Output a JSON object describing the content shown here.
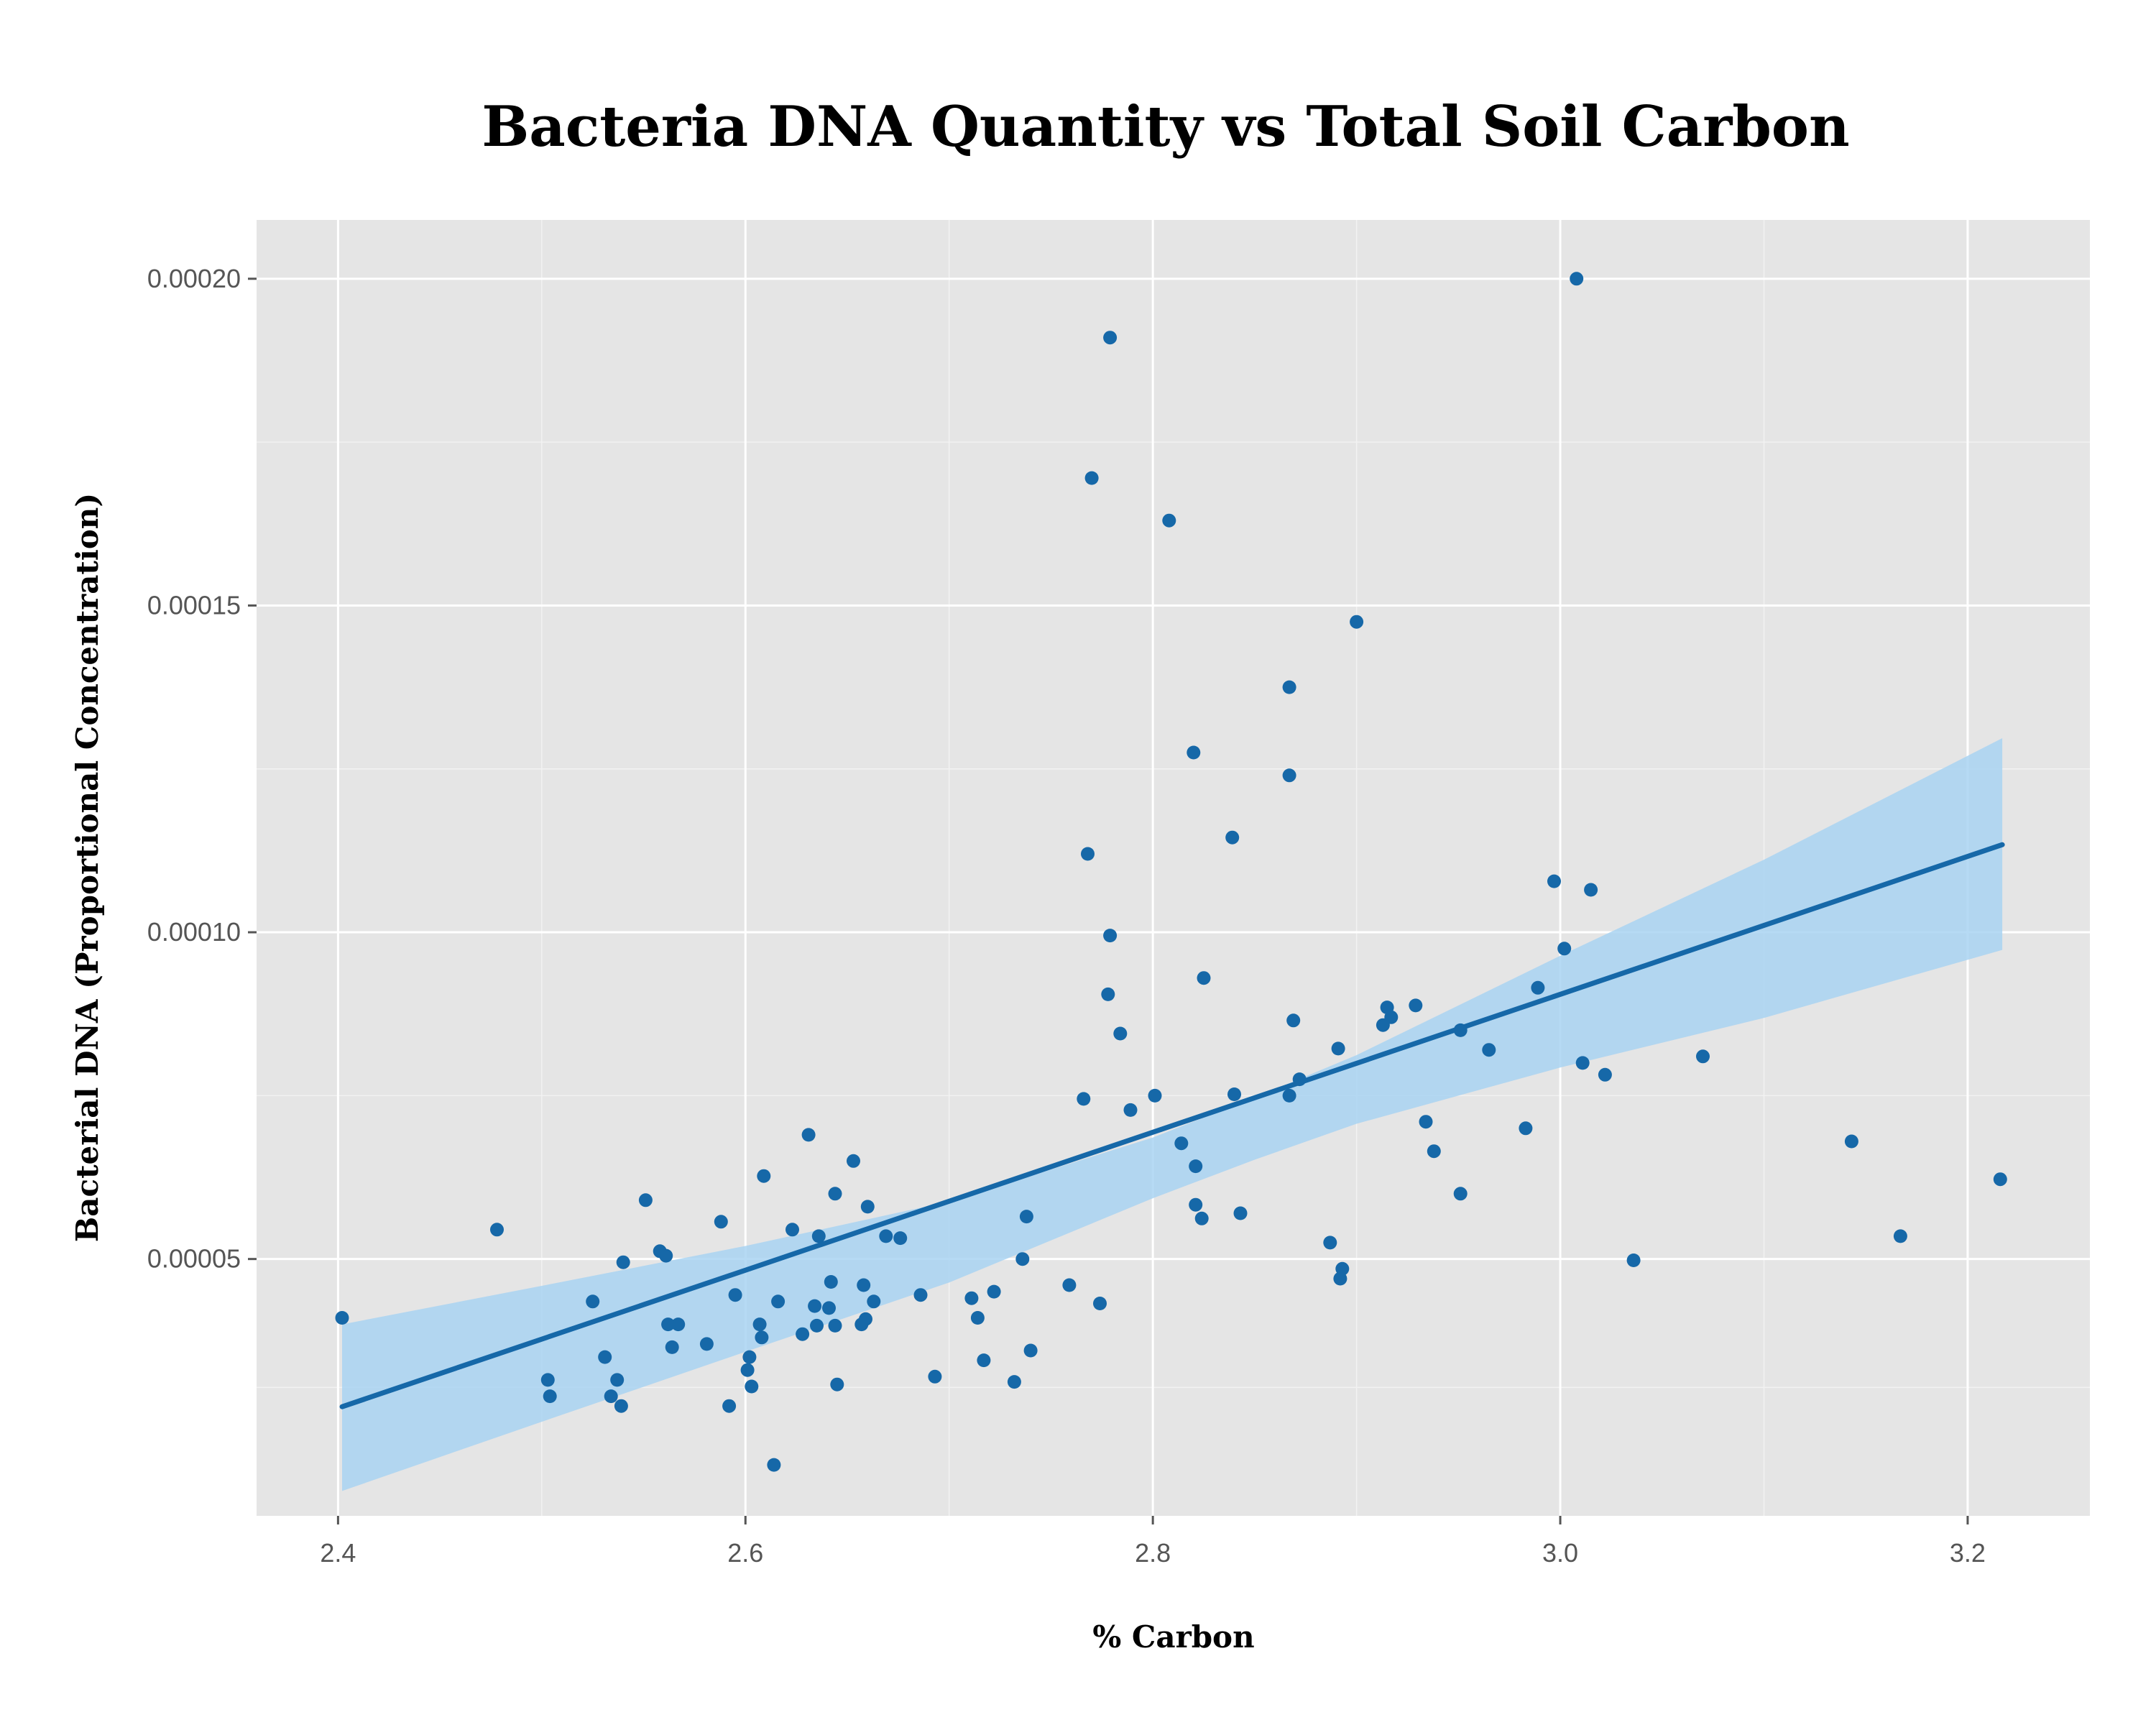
{
  "chart_data": {
    "type": "scatter",
    "title": "Bacteria DNA Quantity vs Total Soil Carbon",
    "xlabel": "% Carbon",
    "ylabel": "Bacterial DNA (Proportional Concentration)",
    "xlim": [
      2.36,
      3.26
    ],
    "ylim": [
      1.07e-05,
      0.000209
    ],
    "x_ticks": [
      2.4,
      2.6,
      2.8,
      3.0,
      3.2
    ],
    "x_tick_labels": [
      "2.4",
      "2.6",
      "2.8",
      "3.0",
      "3.2"
    ],
    "y_ticks": [
      5e-05,
      0.0001,
      0.00015,
      0.0002
    ],
    "y_tick_labels": [
      "0.00005",
      "0.00010",
      "0.00015",
      "0.00020"
    ],
    "grid": true,
    "background_color": "#e5e5e5",
    "point_color": "#1668a8",
    "line_color": "#1668a8",
    "band_color": "#a9d3f2",
    "regression_line": {
      "x": [
        2.402,
        3.217
      ],
      "y": [
        2.74e-05,
        0.0001134
      ]
    },
    "confidence_band": {
      "x": [
        2.402,
        2.5,
        2.6,
        2.7,
        2.8,
        2.85,
        2.9,
        3.0,
        3.1,
        3.217
      ],
      "lower": [
        1.45e-05,
        2.51e-05,
        3.58e-05,
        4.64e-05,
        5.93e-05,
        6.52e-05,
        7.07e-05,
        7.93e-05,
        8.69e-05,
        9.73e-05
      ],
      "upper": [
        4e-05,
        4.59e-05,
        5.2e-05,
        5.88e-05,
        6.86e-05,
        7.47e-05,
        8.12e-05,
        9.64e-05,
        0.0001111,
        0.0001297
      ]
    },
    "series": [
      {
        "points": [
          [
            2.402,
            4.1e-05
          ],
          [
            2.478,
            5.45e-05
          ],
          [
            2.503,
            3.15e-05
          ],
          [
            2.504,
            2.9e-05
          ],
          [
            2.525,
            4.35e-05
          ],
          [
            2.531,
            3.5e-05
          ],
          [
            2.534,
            2.9e-05
          ],
          [
            2.537,
            3.15e-05
          ],
          [
            2.539,
            2.75e-05
          ],
          [
            2.54,
            4.95e-05
          ],
          [
            2.551,
            5.9e-05
          ],
          [
            2.558,
            5.12e-05
          ],
          [
            2.561,
            5.05e-05
          ],
          [
            2.562,
            4e-05
          ],
          [
            2.564,
            3.65e-05
          ],
          [
            2.567,
            4e-05
          ],
          [
            2.581,
            3.7e-05
          ],
          [
            2.588,
            5.57e-05
          ],
          [
            2.592,
            2.75e-05
          ],
          [
            2.595,
            4.45e-05
          ],
          [
            2.601,
            3.3e-05
          ],
          [
            2.602,
            3.5e-05
          ],
          [
            2.603,
            3.05e-05
          ],
          [
            2.607,
            4e-05
          ],
          [
            2.608,
            3.8e-05
          ],
          [
            2.609,
            6.27e-05
          ],
          [
            2.614,
            1.85e-05
          ],
          [
            2.616,
            4.35e-05
          ],
          [
            2.623,
            5.45e-05
          ],
          [
            2.628,
            3.85e-05
          ],
          [
            2.631,
            6.9e-05
          ],
          [
            2.634,
            4.28e-05
          ],
          [
            2.635,
            3.98e-05
          ],
          [
            2.636,
            5.35e-05
          ],
          [
            2.641,
            4.25e-05
          ],
          [
            2.642,
            4.65e-05
          ],
          [
            2.644,
            3.98e-05
          ],
          [
            2.644,
            6e-05
          ],
          [
            2.645,
            3.08e-05
          ],
          [
            2.653,
            6.5e-05
          ],
          [
            2.657,
            4e-05
          ],
          [
            2.658,
            4.6e-05
          ],
          [
            2.659,
            4.08e-05
          ],
          [
            2.66,
            5.8e-05
          ],
          [
            2.663,
            4.35e-05
          ],
          [
            2.669,
            5.35e-05
          ],
          [
            2.676,
            5.32e-05
          ],
          [
            2.686,
            4.45e-05
          ],
          [
            2.693,
            3.2e-05
          ],
          [
            2.711,
            4.4e-05
          ],
          [
            2.714,
            4.1e-05
          ],
          [
            2.717,
            3.45e-05
          ],
          [
            2.722,
            4.5e-05
          ],
          [
            2.732,
            3.12e-05
          ],
          [
            2.736,
            5e-05
          ],
          [
            2.738,
            5.65e-05
          ],
          [
            2.74,
            3.6e-05
          ],
          [
            2.759,
            4.6e-05
          ],
          [
            2.766,
            7.45e-05
          ],
          [
            2.768,
            0.000112
          ],
          [
            2.77,
            0.0001695
          ],
          [
            2.774,
            4.32e-05
          ],
          [
            2.778,
            9.05e-05
          ],
          [
            2.779,
            9.95e-05
          ],
          [
            2.779,
            0.000191
          ],
          [
            2.784,
            8.45e-05
          ],
          [
            2.789,
            7.28e-05
          ],
          [
            2.801,
            7.5e-05
          ],
          [
            2.808,
            0.000163
          ],
          [
            2.814,
            6.77e-05
          ],
          [
            2.82,
            0.0001275
          ],
          [
            2.821,
            6.42e-05
          ],
          [
            2.821,
            5.83e-05
          ],
          [
            2.824,
            5.62e-05
          ],
          [
            2.825,
            9.3e-05
          ],
          [
            2.839,
            0.0001145
          ],
          [
            2.84,
            7.52e-05
          ],
          [
            2.843,
            5.7e-05
          ],
          [
            2.867,
            0.000124
          ],
          [
            2.867,
            7.5e-05
          ],
          [
            2.867,
            0.0001375
          ],
          [
            2.869,
            8.65e-05
          ],
          [
            2.872,
            7.75e-05
          ],
          [
            2.887,
            5.25e-05
          ],
          [
            2.891,
            8.22e-05
          ],
          [
            2.892,
            4.7e-05
          ],
          [
            2.893,
            4.85e-05
          ],
          [
            2.9,
            0.0001475
          ],
          [
            2.913,
            8.58e-05
          ],
          [
            2.915,
            8.85e-05
          ],
          [
            2.917,
            8.7e-05
          ],
          [
            2.929,
            8.88e-05
          ],
          [
            2.934,
            7.1e-05
          ],
          [
            2.938,
            6.65e-05
          ],
          [
            2.951,
            8.5e-05
          ],
          [
            2.951,
            6e-05
          ],
          [
            2.965,
            8.2e-05
          ],
          [
            2.983,
            7e-05
          ],
          [
            2.989,
            9.15e-05
          ],
          [
            2.997,
            0.0001078
          ],
          [
            3.002,
            9.75e-05
          ],
          [
            3.008,
            0.0002
          ],
          [
            3.011,
            8e-05
          ],
          [
            3.015,
            0.0001065
          ],
          [
            3.022,
            7.82e-05
          ],
          [
            3.036,
            4.98e-05
          ],
          [
            3.07,
            8.1e-05
          ],
          [
            3.143,
            6.8e-05
          ],
          [
            3.167,
            5.35e-05
          ],
          [
            3.216,
            6.22e-05
          ]
        ]
      }
    ]
  }
}
